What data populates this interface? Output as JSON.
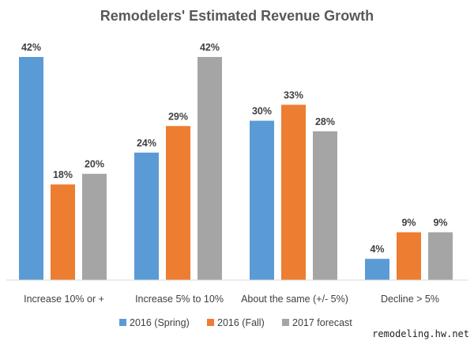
{
  "chart_data": {
    "type": "bar",
    "title": "Remodelers' Estimated Revenue Growth",
    "categories": [
      "Increase 10% or +",
      "Increase 5% to 10%",
      "About the same (+/- 5%)",
      "Decline > 5%"
    ],
    "series": [
      {
        "name": "2016 (Spring)",
        "color": "#5b9bd5",
        "values": [
          42,
          24,
          30,
          4
        ]
      },
      {
        "name": "2016 (Fall)",
        "color": "#ed7d31",
        "values": [
          18,
          29,
          33,
          9
        ]
      },
      {
        "name": "2017 forecast",
        "color": "#a5a5a5",
        "values": [
          20,
          42,
          28,
          9
        ]
      }
    ],
    "value_suffix": "%",
    "ylim": [
      0,
      42
    ],
    "xlabel": "",
    "ylabel": "",
    "grid": false,
    "legend_position": "bottom"
  },
  "watermark": "remodeling.hw.net"
}
